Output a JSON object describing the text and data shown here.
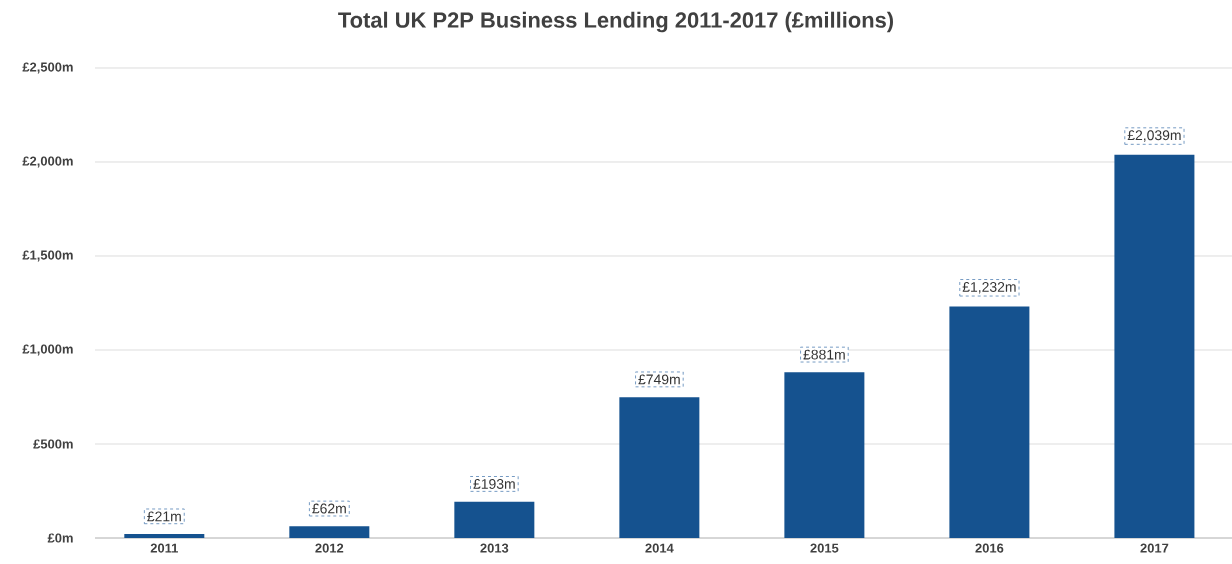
{
  "chart_data": {
    "type": "bar",
    "title": "Total UK P2P Business Lending 2011-2017 (£millions)",
    "categories": [
      "2011",
      "2012",
      "2013",
      "2014",
      "2015",
      "2016",
      "2017"
    ],
    "values": [
      21,
      62,
      193,
      749,
      881,
      1232,
      2039
    ],
    "value_labels": [
      "£21m",
      "£62m",
      "£193m",
      "£749m",
      "£881m",
      "£1,232m",
      "£2,039m"
    ],
    "color": "#15528f",
    "ylim": [
      0,
      2500
    ],
    "yticks": [
      {
        "value": 0,
        "label": "£0m"
      },
      {
        "value": 500,
        "label": "£500m"
      },
      {
        "value": 1000,
        "label": "£1,000m"
      },
      {
        "value": 1500,
        "label": "£1,500m"
      },
      {
        "value": 2000,
        "label": "£2,000m"
      },
      {
        "value": 2500,
        "label": "£2,500m"
      }
    ],
    "grid": "y"
  }
}
